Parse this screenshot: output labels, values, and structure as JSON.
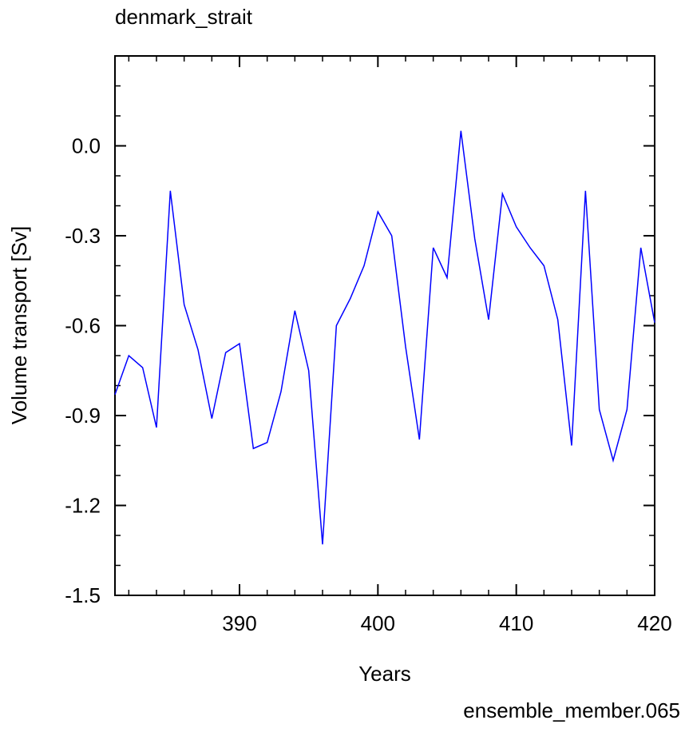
{
  "chart_data": {
    "type": "line",
    "title": "denmark_strait",
    "x_label": "Years",
    "y_label": "Volume transport [Sv]",
    "annotation": "ensemble_member.065",
    "x": [
      381,
      382,
      383,
      384,
      385,
      386,
      387,
      388,
      389,
      390,
      391,
      392,
      393,
      394,
      395,
      396,
      397,
      398,
      399,
      400,
      401,
      402,
      403,
      404,
      405,
      406,
      407,
      408,
      409,
      410,
      411,
      412,
      413,
      414,
      415,
      416,
      417,
      418,
      419,
      420
    ],
    "series": [
      {
        "color": "#0000ff",
        "values": [
          -0.83,
          -0.7,
          -0.74,
          -0.94,
          -0.15,
          -0.53,
          -0.68,
          -0.91,
          -0.69,
          -0.66,
          -1.01,
          -0.99,
          -0.82,
          -0.55,
          -0.75,
          -1.33,
          -0.6,
          -0.51,
          -0.4,
          -0.22,
          -0.3,
          -0.67,
          -0.98,
          -0.34,
          -0.44,
          0.05,
          -0.31,
          -0.58,
          -0.16,
          -0.27,
          -0.34,
          -0.4,
          -0.58,
          -1.0,
          -0.15,
          -0.88,
          -1.05,
          -0.88,
          -0.34,
          -0.59
        ]
      }
    ],
    "xlim": [
      381,
      420
    ],
    "xticks": [
      390,
      400,
      410,
      420
    ],
    "xminorticks": [
      382,
      384,
      386,
      388,
      392,
      394,
      396,
      398,
      402,
      404,
      406,
      408,
      412,
      414,
      416,
      418
    ],
    "ylim": [
      -1.5,
      0.3
    ],
    "yticks": [
      -1.5,
      -1.2,
      -0.9,
      -0.6,
      -0.3,
      {
        "value": 0,
        "label": "0.0"
      }
    ],
    "yminorticks": [
      -1.4,
      -1.3,
      -1.1,
      -1.0,
      -0.8,
      -0.7,
      -0.5,
      -0.4,
      -0.2,
      -0.1,
      0.1,
      0.2
    ],
    "annotation_color": "#0000ff"
  }
}
